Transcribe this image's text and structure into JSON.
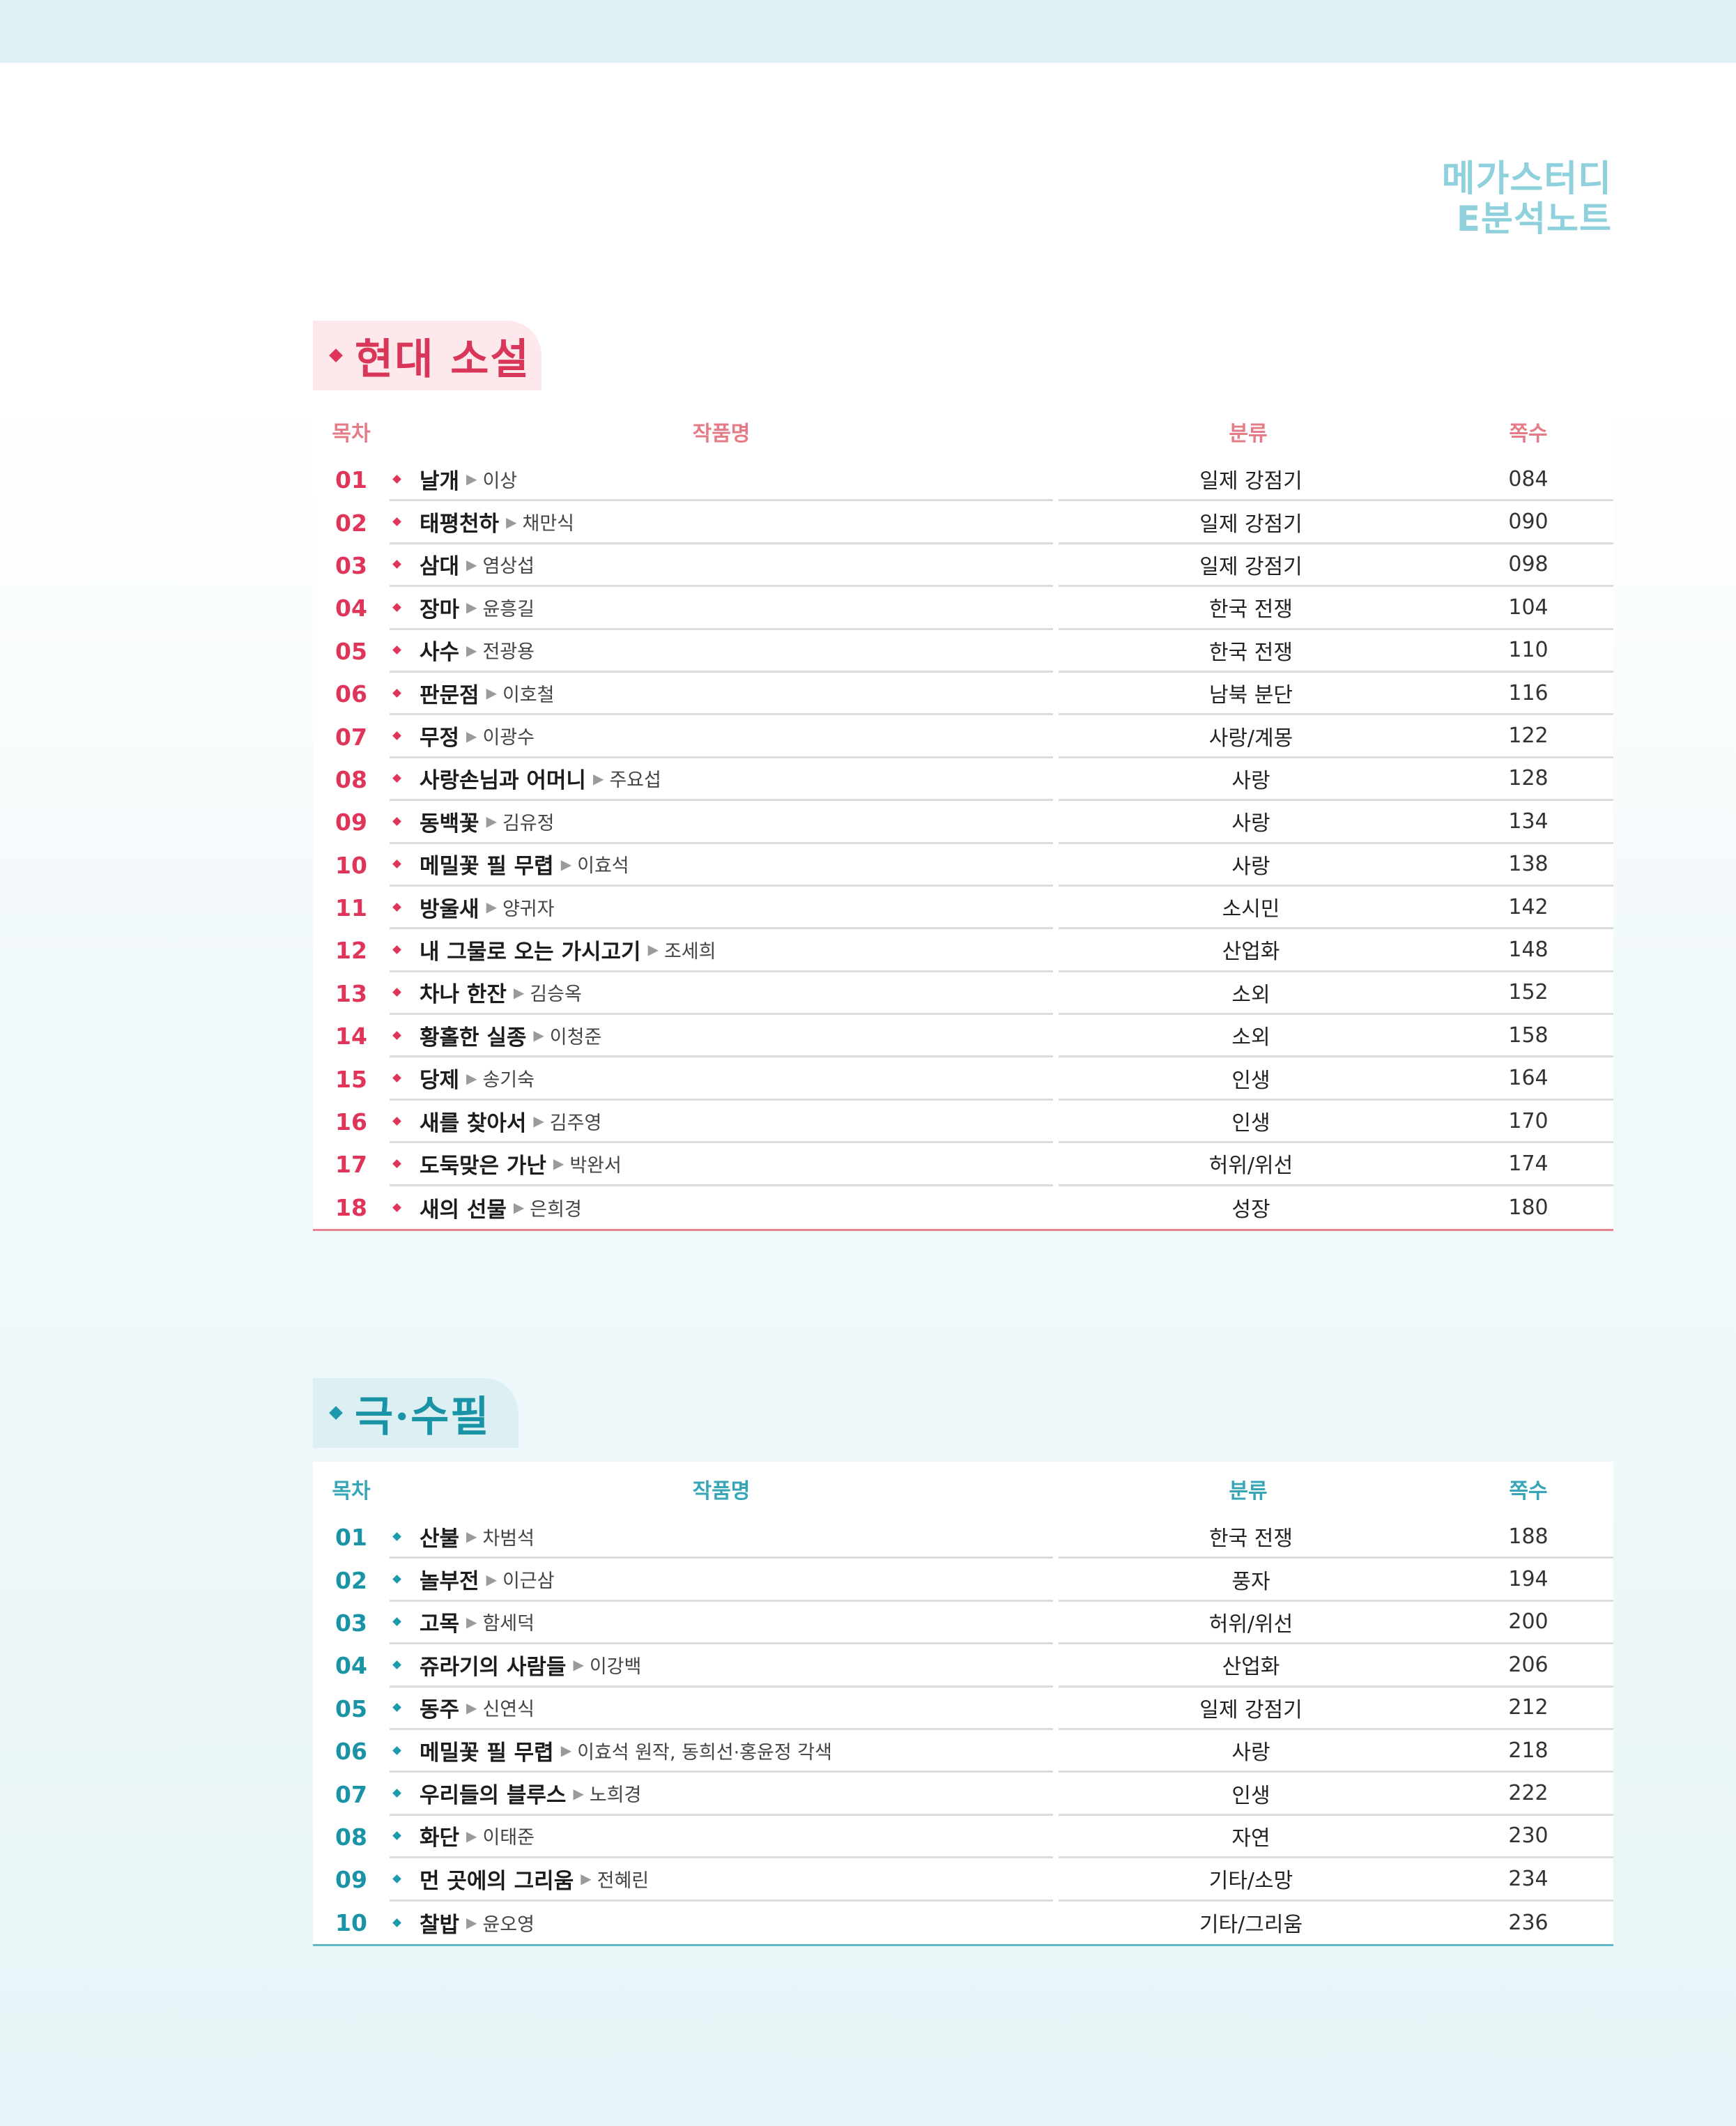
{
  "brand": {
    "line1": "메가스터디",
    "line2": "E분석노트"
  },
  "colors": {
    "pink": "#e0355b",
    "teal": "#1a93a6",
    "brand": "#8ed0dc"
  },
  "headers": {
    "toc": "목차",
    "work": "작품명",
    "category": "분류",
    "page": "쪽수"
  },
  "sections": [
    {
      "title": "현대 소설",
      "rows": [
        {
          "num": "01",
          "title": "날개",
          "author": "이상",
          "category": "일제 강점기",
          "page": "084"
        },
        {
          "num": "02",
          "title": "태평천하",
          "author": "채만식",
          "category": "일제 강점기",
          "page": "090"
        },
        {
          "num": "03",
          "title": "삼대",
          "author": "염상섭",
          "category": "일제 강점기",
          "page": "098"
        },
        {
          "num": "04",
          "title": "장마",
          "author": "윤흥길",
          "category": "한국 전쟁",
          "page": "104"
        },
        {
          "num": "05",
          "title": "사수",
          "author": "전광용",
          "category": "한국 전쟁",
          "page": "110"
        },
        {
          "num": "06",
          "title": "판문점",
          "author": "이호철",
          "category": "남북 분단",
          "page": "116"
        },
        {
          "num": "07",
          "title": "무정",
          "author": "이광수",
          "category": "사랑/계몽",
          "page": "122"
        },
        {
          "num": "08",
          "title": "사랑손님과 어머니",
          "author": "주요섭",
          "category": "사랑",
          "page": "128"
        },
        {
          "num": "09",
          "title": "동백꽃",
          "author": "김유정",
          "category": "사랑",
          "page": "134"
        },
        {
          "num": "10",
          "title": "메밀꽃 필 무렵",
          "author": "이효석",
          "category": "사랑",
          "page": "138"
        },
        {
          "num": "11",
          "title": "방울새",
          "author": "양귀자",
          "category": "소시민",
          "page": "142"
        },
        {
          "num": "12",
          "title": "내 그물로 오는 가시고기",
          "author": "조세희",
          "category": "산업화",
          "page": "148"
        },
        {
          "num": "13",
          "title": "차나 한잔",
          "author": "김승옥",
          "category": "소외",
          "page": "152"
        },
        {
          "num": "14",
          "title": "황홀한 실종",
          "author": "이청준",
          "category": "소외",
          "page": "158"
        },
        {
          "num": "15",
          "title": "당제",
          "author": "송기숙",
          "category": "인생",
          "page": "164"
        },
        {
          "num": "16",
          "title": "새를 찾아서",
          "author": "김주영",
          "category": "인생",
          "page": "170"
        },
        {
          "num": "17",
          "title": "도둑맞은 가난",
          "author": "박완서",
          "category": "허위/위선",
          "page": "174"
        },
        {
          "num": "18",
          "title": "새의 선물",
          "author": "은희경",
          "category": "성장",
          "page": "180"
        }
      ]
    },
    {
      "title": "극·수필",
      "rows": [
        {
          "num": "01",
          "title": "산불",
          "author": "차범석",
          "category": "한국 전쟁",
          "page": "188"
        },
        {
          "num": "02",
          "title": "놀부전",
          "author": "이근삼",
          "category": "풍자",
          "page": "194"
        },
        {
          "num": "03",
          "title": "고목",
          "author": "함세덕",
          "category": "허위/위선",
          "page": "200"
        },
        {
          "num": "04",
          "title": "쥬라기의 사람들",
          "author": "이강백",
          "category": "산업화",
          "page": "206"
        },
        {
          "num": "05",
          "title": "동주",
          "author": "신연식",
          "category": "일제 강점기",
          "page": "212"
        },
        {
          "num": "06",
          "title": "메밀꽃 필 무렵",
          "author": "이효석 원작, 동희선·홍윤정 각색",
          "category": "사랑",
          "page": "218"
        },
        {
          "num": "07",
          "title": "우리들의 블루스",
          "author": "노희경",
          "category": "인생",
          "page": "222"
        },
        {
          "num": "08",
          "title": "화단",
          "author": "이태준",
          "category": "자연",
          "page": "230"
        },
        {
          "num": "09",
          "title": "먼 곳에의 그리움",
          "author": "전혜린",
          "category": "기타/소망",
          "page": "234"
        },
        {
          "num": "10",
          "title": "찰밥",
          "author": "윤오영",
          "category": "기타/그리움",
          "page": "236"
        }
      ]
    }
  ]
}
